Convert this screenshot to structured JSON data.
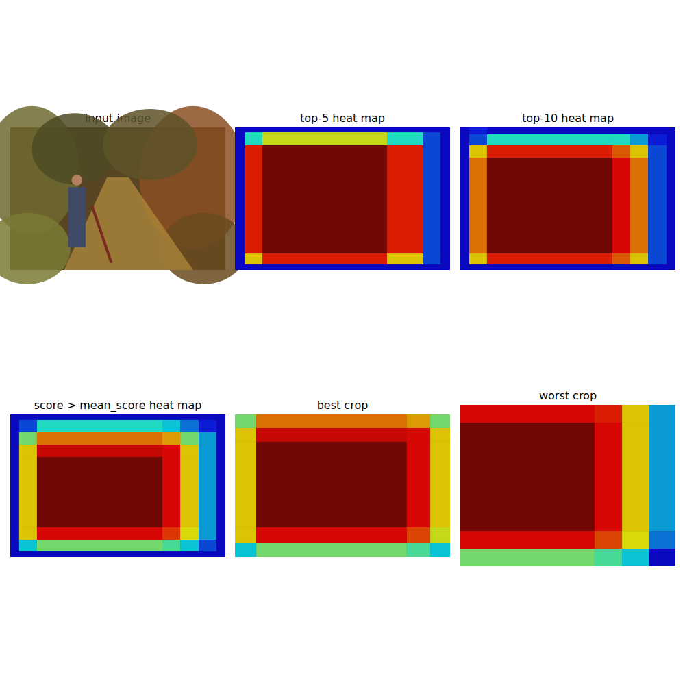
{
  "chart_data": [
    {
      "type": "image",
      "title": "input image"
    },
    {
      "type": "heatmap",
      "title": "top-5 heat map",
      "tick_labels": false,
      "xlim": [
        0,
        100
      ],
      "ylim": [
        0,
        100
      ],
      "color_range": [
        0,
        1
      ],
      "x_edges": [
        0,
        4.5,
        12.7,
        70.7,
        87.6,
        95.5,
        100
      ],
      "y_edges": [
        0,
        3.4,
        12.5,
        88.5,
        96.2,
        100
      ],
      "values": [
        [
          0.1,
          0.1,
          0.1,
          0.1,
          0.1,
          0.1
        ],
        [
          0.1,
          0.4,
          0.6,
          0.4,
          0.2,
          0.1
        ],
        [
          0.1,
          0.85,
          1.0,
          0.85,
          0.2,
          0.1
        ],
        [
          0.1,
          0.65,
          0.85,
          0.65,
          0.2,
          0.1
        ],
        [
          0.1,
          0.1,
          0.1,
          0.1,
          0.1,
          0.1
        ]
      ]
    },
    {
      "type": "heatmap",
      "title": "top-10 heat map",
      "tick_labels": false,
      "xlim": [
        0,
        100
      ],
      "ylim": [
        0,
        100
      ],
      "color_range": [
        0,
        1
      ],
      "x_edges": [
        0,
        4.1,
        12.4,
        70.7,
        79,
        87.3,
        95.9,
        100
      ],
      "y_edges": [
        0,
        4.8,
        12.5,
        21.2,
        88.5,
        96.2,
        100
      ],
      "values": [
        [
          0.1,
          0.15,
          0.1,
          0.1,
          0.1,
          0.1,
          0.1
        ],
        [
          0.1,
          0.2,
          0.4,
          0.4,
          0.3,
          0.15,
          0.1
        ],
        [
          0.1,
          0.65,
          0.85,
          0.78,
          0.65,
          0.2,
          0.1
        ],
        [
          0.1,
          0.75,
          1.0,
          0.88,
          0.75,
          0.2,
          0.1
        ],
        [
          0.1,
          0.65,
          0.85,
          0.78,
          0.65,
          0.2,
          0.1
        ],
        [
          0.1,
          0.1,
          0.1,
          0.1,
          0.1,
          0.1,
          0.1
        ]
      ]
    },
    {
      "type": "heatmap",
      "title": "score > mean_score heat map",
      "tick_labels": false,
      "xlim": [
        0,
        100
      ],
      "ylim": [
        0,
        100
      ],
      "color_range": [
        0,
        1
      ],
      "x_edges": [
        0,
        4.1,
        12.4,
        70.7,
        79,
        87.6,
        95.9,
        100
      ],
      "y_edges": [
        0,
        3.8,
        12.5,
        21.2,
        29.8,
        79.3,
        88,
        96.2,
        100
      ],
      "values": [
        [
          0.1,
          0.1,
          0.1,
          0.1,
          0.1,
          0.1,
          0.1
        ],
        [
          0.1,
          0.2,
          0.4,
          0.35,
          0.25,
          0.15,
          0.1
        ],
        [
          0.1,
          0.5,
          0.75,
          0.7,
          0.5,
          0.3,
          0.1
        ],
        [
          0.1,
          0.65,
          0.9,
          0.88,
          0.65,
          0.3,
          0.1
        ],
        [
          0.1,
          0.65,
          1.0,
          0.88,
          0.65,
          0.3,
          0.1
        ],
        [
          0.1,
          0.65,
          0.88,
          0.82,
          0.62,
          0.3,
          0.1
        ],
        [
          0.1,
          0.35,
          0.5,
          0.45,
          0.35,
          0.2,
          0.1
        ],
        [
          0.1,
          0.1,
          0.1,
          0.1,
          0.1,
          0.1,
          0.1
        ]
      ]
    },
    {
      "type": "heatmap",
      "title": "best crop",
      "tick_labels": false,
      "xlim": [
        0,
        100
      ],
      "ylim": [
        0,
        100
      ],
      "color_range": [
        0,
        1
      ],
      "x_edges": [
        0,
        9.9,
        79.9,
        90.8,
        100
      ],
      "y_edges": [
        0,
        9.6,
        19.2,
        79.3,
        89.9,
        100
      ],
      "values": [
        [
          0.5,
          0.75,
          0.7,
          0.5
        ],
        [
          0.65,
          0.9,
          0.88,
          0.65
        ],
        [
          0.65,
          1.0,
          0.88,
          0.65
        ],
        [
          0.65,
          0.88,
          0.8,
          0.6
        ],
        [
          0.35,
          0.5,
          0.45,
          0.35
        ]
      ]
    },
    {
      "type": "heatmap",
      "title": "worst crop",
      "tick_labels": false,
      "xlim": [
        0,
        100
      ],
      "ylim": [
        0,
        100
      ],
      "color_range": [
        0,
        1
      ],
      "x_edges": [
        0,
        62.4,
        75.2,
        87.6,
        100
      ],
      "y_edges": [
        0,
        11,
        78,
        89,
        100
      ],
      "values": [
        [
          0.88,
          0.85,
          0.65,
          0.3
        ],
        [
          1.0,
          0.88,
          0.65,
          0.3
        ],
        [
          0.88,
          0.8,
          0.62,
          0.25
        ],
        [
          0.5,
          0.45,
          0.35,
          0.1
        ]
      ]
    }
  ]
}
